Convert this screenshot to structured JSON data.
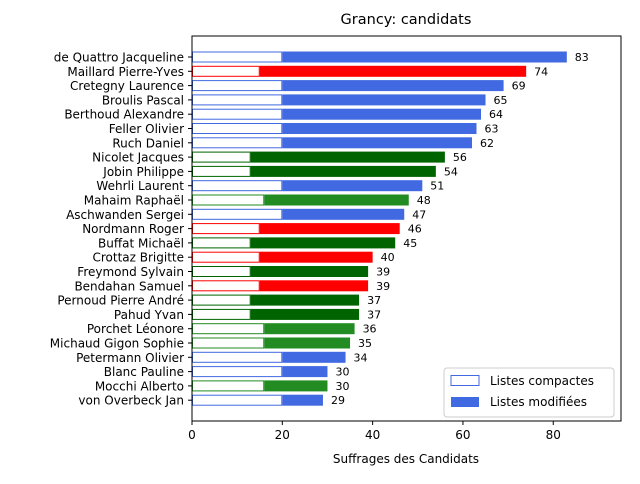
{
  "chart_data": {
    "type": "bar",
    "orientation": "horizontal",
    "title": "Grancy: candidats",
    "xlabel": "Suffrages des Candidats",
    "ylabel": "",
    "xlim": [
      0,
      95
    ],
    "xticks": [
      "0",
      "20",
      "40",
      "60",
      "80"
    ],
    "grid": false,
    "legend_position": "lower-right",
    "legend": {
      "compact_label": "Listes compactes",
      "modified_label": "Listes modifiées"
    },
    "colors": {
      "blue": "#4169e1",
      "red": "#ff0000",
      "darkgreen": "#006400",
      "green": "#228b22"
    },
    "candidates": [
      {
        "name": "de Quattro Jacqueline",
        "total": 83,
        "compact": 20,
        "color": "blue"
      },
      {
        "name": "Maillard Pierre-Yves",
        "total": 74,
        "compact": 15,
        "color": "red"
      },
      {
        "name": "Cretegny Laurence",
        "total": 69,
        "compact": 20,
        "color": "blue"
      },
      {
        "name": "Broulis Pascal",
        "total": 65,
        "compact": 20,
        "color": "blue"
      },
      {
        "name": "Berthoud Alexandre",
        "total": 64,
        "compact": 20,
        "color": "blue"
      },
      {
        "name": "Feller Olivier",
        "total": 63,
        "compact": 20,
        "color": "blue"
      },
      {
        "name": "Ruch Daniel",
        "total": 62,
        "compact": 20,
        "color": "blue"
      },
      {
        "name": "Nicolet Jacques",
        "total": 56,
        "compact": 13,
        "color": "darkgreen"
      },
      {
        "name": "Jobin Philippe",
        "total": 54,
        "compact": 13,
        "color": "darkgreen"
      },
      {
        "name": "Wehrli Laurent",
        "total": 51,
        "compact": 20,
        "color": "blue"
      },
      {
        "name": "Mahaim Raphaël",
        "total": 48,
        "compact": 16,
        "color": "green"
      },
      {
        "name": "Aschwanden Sergei",
        "total": 47,
        "compact": 20,
        "color": "blue"
      },
      {
        "name": "Nordmann Roger",
        "total": 46,
        "compact": 15,
        "color": "red"
      },
      {
        "name": "Buffat Michaël",
        "total": 45,
        "compact": 13,
        "color": "darkgreen"
      },
      {
        "name": "Crottaz Brigitte",
        "total": 40,
        "compact": 15,
        "color": "red"
      },
      {
        "name": "Freymond Sylvain",
        "total": 39,
        "compact": 13,
        "color": "darkgreen"
      },
      {
        "name": "Bendahan Samuel",
        "total": 39,
        "compact": 15,
        "color": "red"
      },
      {
        "name": "Pernoud Pierre André",
        "total": 37,
        "compact": 13,
        "color": "darkgreen"
      },
      {
        "name": "Pahud Yvan",
        "total": 37,
        "compact": 13,
        "color": "darkgreen"
      },
      {
        "name": "Porchet Léonore",
        "total": 36,
        "compact": 16,
        "color": "green"
      },
      {
        "name": "Michaud Gigon Sophie",
        "total": 35,
        "compact": 16,
        "color": "green"
      },
      {
        "name": "Petermann Olivier",
        "total": 34,
        "compact": 20,
        "color": "blue"
      },
      {
        "name": "Blanc Pauline",
        "total": 30,
        "compact": 20,
        "color": "blue"
      },
      {
        "name": "Mocchi Alberto",
        "total": 30,
        "compact": 16,
        "color": "green"
      },
      {
        "name": "von Overbeck Jan",
        "total": 29,
        "compact": 20,
        "color": "blue"
      }
    ]
  }
}
